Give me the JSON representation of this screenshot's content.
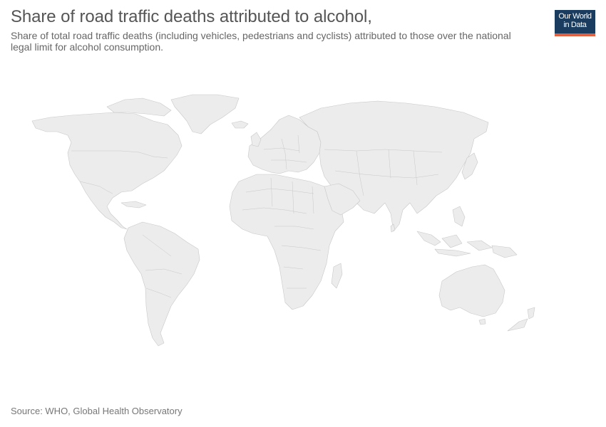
{
  "header": {
    "title": "Share of road traffic deaths attributed to alcohol,",
    "subtitle": "Share of total road traffic deaths (including vehicles, pedestrians and cyclists) attributed to those over the national legal limit for alcohol consumption."
  },
  "logo": {
    "line1": "Our World",
    "line2": "in Data",
    "bg_color": "#1a3d5f",
    "accent_color": "#e0603f"
  },
  "map": {
    "fill_color": "#ececec",
    "border_color": "#c8c8c8"
  },
  "footer": {
    "source": "Source: WHO, Global Health Observatory"
  }
}
